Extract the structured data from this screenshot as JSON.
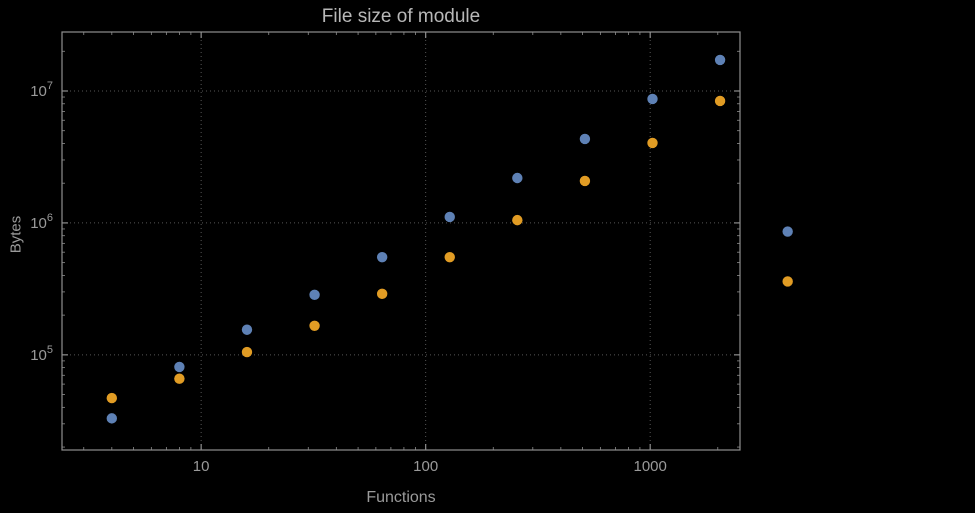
{
  "chart_data": {
    "type": "scatter",
    "title": "File size of module",
    "xlabel": "Functions",
    "ylabel": "Bytes",
    "x_scale": "log",
    "y_scale": "log",
    "grid": "dotted-major",
    "legend_position": "none",
    "xlim": [
      2.4,
      2512
    ],
    "ylim": [
      19000,
      28000000
    ],
    "x_ticks": [
      10,
      100,
      1000
    ],
    "x_tick_labels": [
      "10",
      "100",
      "1000"
    ],
    "y_ticks": [
      100000,
      1000000,
      10000000
    ],
    "y_tick_labels": [
      "10^5",
      "10^6",
      "10^7"
    ],
    "x": [
      4,
      8,
      16,
      32,
      64,
      128,
      256,
      512,
      1024,
      2048,
      4096
    ],
    "series": [
      {
        "name": "blue",
        "color": "#5e81b5",
        "values": [
          33000,
          81000,
          155000,
          285000,
          550000,
          1110000,
          2190000,
          4330000,
          8700000,
          17200000,
          860000
        ]
      },
      {
        "name": "orange",
        "color": "#e19c24",
        "values": [
          47000,
          66000,
          105000,
          166000,
          290000,
          550000,
          1050000,
          2080000,
          4040000,
          8400000,
          360000
        ]
      }
    ]
  },
  "colors": {
    "background": "#000000",
    "frame": "#8f8f8f",
    "grid": "#565656",
    "title": "#b8b8b8",
    "labels": "#9a9a9a",
    "series_blue": "#5e81b5",
    "series_orange": "#e19c24"
  }
}
